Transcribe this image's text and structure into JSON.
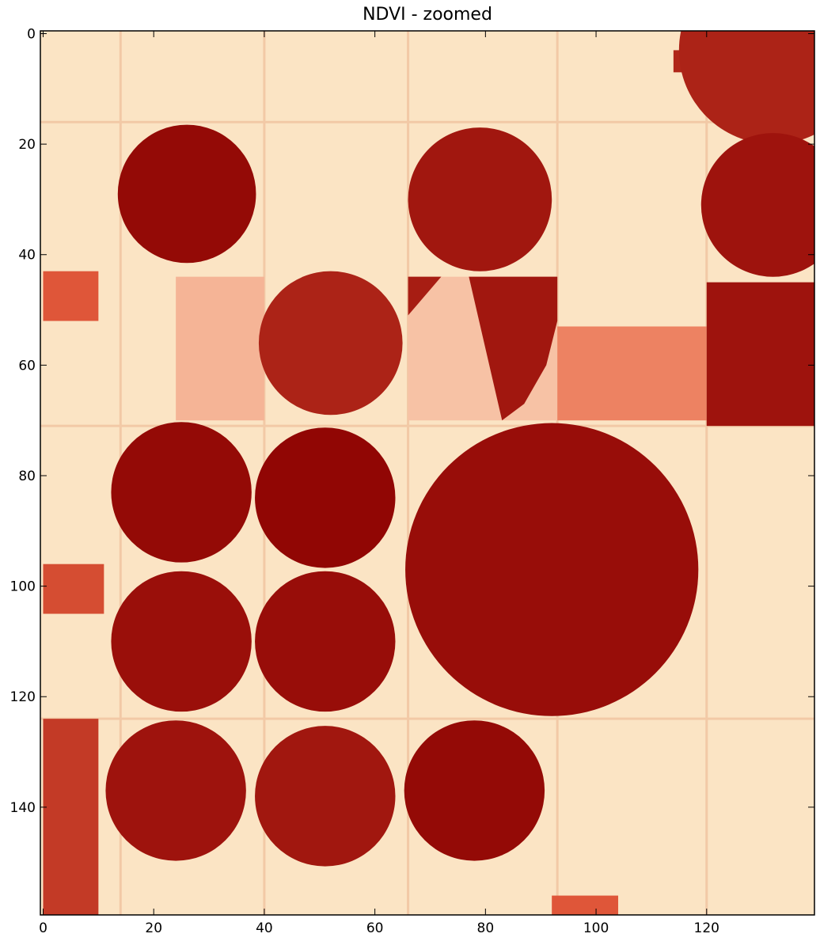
{
  "chart_data": {
    "type": "heatmap",
    "title": "NDVI - zoomed",
    "xlabel": "",
    "ylabel": "",
    "xlim": [
      -0.5,
      139.5
    ],
    "ylim": [
      159.5,
      -0.5
    ],
    "x_ticks": [
      0,
      20,
      40,
      60,
      80,
      100,
      120
    ],
    "y_ticks": [
      0,
      20,
      40,
      60,
      80,
      100,
      120,
      140
    ],
    "colormap": "OrRd",
    "colors": {
      "low": "#fdecd0",
      "mid": "#e8603f",
      "high": "#8b0000",
      "background": "#fbe4c4",
      "frame": "#000000"
    },
    "fields": {
      "rects": [
        {
          "x0": 0,
          "x1": 10,
          "y0": 43,
          "y1": 52,
          "value": 0.55
        },
        {
          "x0": 0,
          "x1": 11,
          "y0": 96,
          "y1": 105,
          "value": 0.6
        },
        {
          "x0": 0,
          "x1": 10,
          "y0": 124,
          "y1": 160,
          "value": 0.7
        },
        {
          "x0": 24,
          "x1": 40,
          "y0": 44,
          "y1": 70,
          "value": 0.2
        },
        {
          "x0": 66,
          "x1": 93,
          "y0": 44,
          "y1": 70,
          "value": 0.15
        },
        {
          "x0": 93,
          "x1": 120,
          "y0": 53,
          "y1": 70,
          "value": 0.38
        },
        {
          "x0": 120,
          "x1": 140,
          "y0": 45,
          "y1": 71,
          "value": 0.9
        },
        {
          "x0": 92,
          "x1": 104,
          "y0": 156,
          "y1": 160,
          "value": 0.55
        },
        {
          "x0": 114,
          "x1": 120,
          "y0": 3,
          "y1": 7,
          "value": 0.8
        }
      ],
      "circles": [
        {
          "cx": 132,
          "cy": 3,
          "r": 17,
          "value": 0.82
        },
        {
          "cx": 26,
          "cy": 29,
          "r": 12.5,
          "value": 0.95
        },
        {
          "cx": 79,
          "cy": 30,
          "r": 13,
          "value": 0.88
        },
        {
          "cx": 132,
          "cy": 31,
          "r": 13,
          "value": 0.9
        },
        {
          "cx": 52,
          "cy": 56,
          "r": 13,
          "value": 0.82
        },
        {
          "cx": 25,
          "cy": 83,
          "r": 12.7,
          "value": 0.95
        },
        {
          "cx": 51,
          "cy": 84,
          "r": 12.7,
          "value": 0.97
        },
        {
          "cx": 92,
          "cy": 97,
          "r": 26.5,
          "value": 0.93
        },
        {
          "cx": 25,
          "cy": 110,
          "r": 12.7,
          "value": 0.92
        },
        {
          "cx": 51,
          "cy": 110,
          "r": 12.7,
          "value": 0.93
        },
        {
          "cx": 24,
          "cy": 137,
          "r": 12.7,
          "value": 0.9
        },
        {
          "cx": 51,
          "cy": 138,
          "r": 12.7,
          "value": 0.88
        },
        {
          "cx": 78,
          "cy": 137,
          "r": 12.7,
          "value": 0.95
        }
      ],
      "polygons": [
        {
          "points": [
            [
              66,
              44
            ],
            [
              72,
              44
            ],
            [
              66,
              51
            ]
          ],
          "value": 0.85
        },
        {
          "points": [
            [
              77,
              44
            ],
            [
              93,
              44
            ],
            [
              93,
              52
            ],
            [
              91,
              60
            ],
            [
              87,
              67
            ],
            [
              83,
              70
            ]
          ],
          "value": 0.88
        }
      ]
    }
  }
}
